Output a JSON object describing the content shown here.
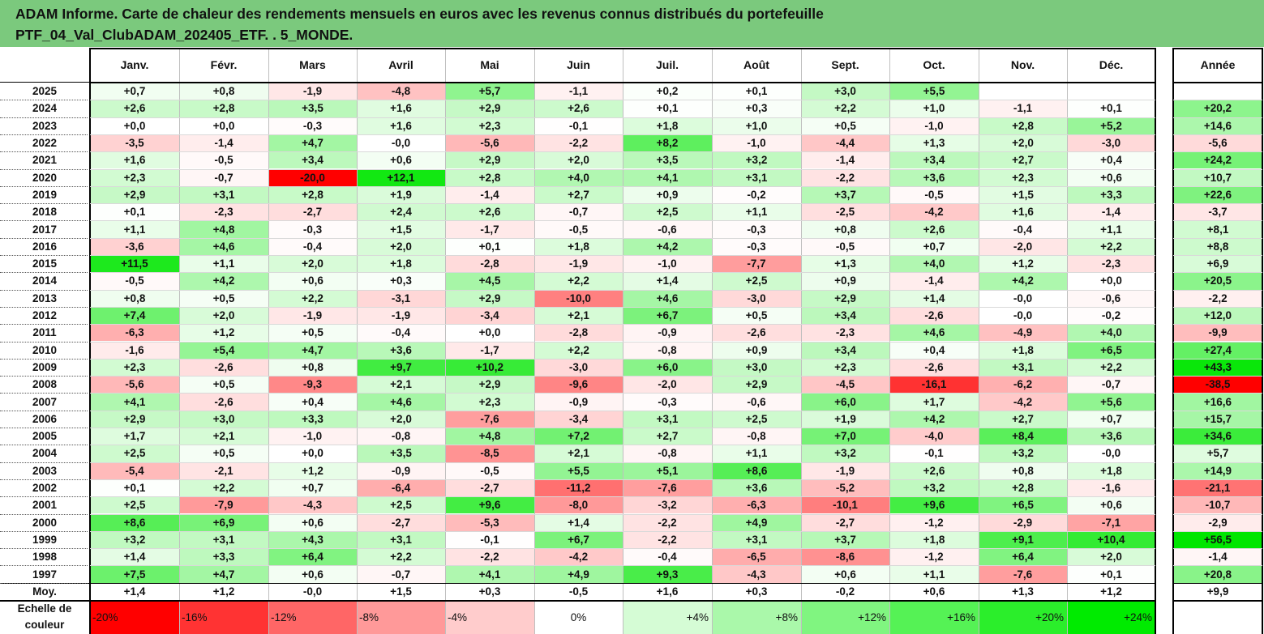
{
  "title": {
    "line1": "ADAM Informe. Carte de chaleur des rendements mensuels en euros avec les revenus connus distribués du portefeuille",
    "line2": "PTF_04_Val_ClubADAM_202405_ETF. . 5_MONDE."
  },
  "colors": {
    "title_band": "#7bc97d",
    "negative_max": "#ff0000",
    "neutral": "#ffffff",
    "positive_max": "#00e600"
  },
  "chart_data": {
    "type": "heatmap",
    "title": "ADAM Informe. Carte de chaleur des rendements mensuels en euros avec les revenus connus distribués du portefeuille PTF_04_Val_ClubADAM_202405_ETF. . 5_MONDE.",
    "columns": [
      "Janv.",
      "Févr.",
      "Mars",
      "Avril",
      "Mai",
      "Juin",
      "Juil.",
      "Août",
      "Sept.",
      "Oct.",
      "Nov.",
      "Déc."
    ],
    "year_column": "Année",
    "rows": [
      {
        "year": "2025",
        "months": [
          "+0,7",
          "+0,8",
          "-1,9",
          "-4,8",
          "+5,7",
          "-1,1",
          "+0,2",
          "+0,1",
          "+3,0",
          "+5,5",
          "",
          ""
        ],
        "annual": ""
      },
      {
        "year": "2024",
        "months": [
          "+2,6",
          "+2,8",
          "+3,5",
          "+1,6",
          "+2,9",
          "+2,6",
          "+0,1",
          "+0,3",
          "+2,2",
          "+1,0",
          "-1,1",
          "+0,1"
        ],
        "annual": "+20,2"
      },
      {
        "year": "2023",
        "months": [
          "+0,0",
          "+0,0",
          "-0,3",
          "+1,6",
          "+2,3",
          "-0,1",
          "+1,8",
          "+1,0",
          "+0,5",
          "-1,0",
          "+2,8",
          "+5,2"
        ],
        "annual": "+14,6"
      },
      {
        "year": "2022",
        "months": [
          "-3,5",
          "-1,4",
          "+4,7",
          "-0,0",
          "-5,6",
          "-2,2",
          "+8,2",
          "-1,0",
          "-4,4",
          "+1,3",
          "+2,0",
          "-3,0"
        ],
        "annual": "-5,6"
      },
      {
        "year": "2021",
        "months": [
          "+1,6",
          "-0,5",
          "+3,4",
          "+0,6",
          "+2,9",
          "+2,0",
          "+3,5",
          "+3,2",
          "-1,4",
          "+3,4",
          "+2,7",
          "+0,4"
        ],
        "annual": "+24,2"
      },
      {
        "year": "2020",
        "months": [
          "+2,3",
          "-0,7",
          "-20,0",
          "+12,1",
          "+2,8",
          "+4,0",
          "+4,1",
          "+3,1",
          "-2,2",
          "+3,6",
          "+2,3",
          "+0,6"
        ],
        "annual": "+10,7"
      },
      {
        "year": "2019",
        "months": [
          "+2,9",
          "+3,1",
          "+2,8",
          "+1,9",
          "-1,4",
          "+2,7",
          "+0,9",
          "-0,2",
          "+3,7",
          "-0,5",
          "+1,5",
          "+3,3"
        ],
        "annual": "+22,6"
      },
      {
        "year": "2018",
        "months": [
          "+0,1",
          "-2,3",
          "-2,7",
          "+2,4",
          "+2,6",
          "-0,7",
          "+2,5",
          "+1,1",
          "-2,5",
          "-4,2",
          "+1,6",
          "-1,4"
        ],
        "annual": "-3,7"
      },
      {
        "year": "2017",
        "months": [
          "+1,1",
          "+4,8",
          "-0,3",
          "+1,5",
          "-1,7",
          "-0,5",
          "-0,6",
          "-0,3",
          "+0,8",
          "+2,6",
          "-0,4",
          "+1,1"
        ],
        "annual": "+8,1"
      },
      {
        "year": "2016",
        "months": [
          "-3,6",
          "+4,6",
          "-0,4",
          "+2,0",
          "+0,1",
          "+1,8",
          "+4,2",
          "-0,3",
          "-0,5",
          "+0,7",
          "-2,0",
          "+2,2"
        ],
        "annual": "+8,8"
      },
      {
        "year": "2015",
        "months": [
          "+11,5",
          "+1,1",
          "+2,0",
          "+1,8",
          "-2,8",
          "-1,9",
          "-1,0",
          "-7,7",
          "+1,3",
          "+4,0",
          "+1,2",
          "-2,3"
        ],
        "annual": "+6,9"
      },
      {
        "year": "2014",
        "months": [
          "-0,5",
          "+4,2",
          "+0,6",
          "+0,3",
          "+4,5",
          "+2,2",
          "+1,4",
          "+2,5",
          "+0,9",
          "-1,4",
          "+4,2",
          "+0,0"
        ],
        "annual": "+20,5"
      },
      {
        "year": "2013",
        "months": [
          "+0,8",
          "+0,5",
          "+2,2",
          "-3,1",
          "+2,9",
          "-10,0",
          "+4,6",
          "-3,0",
          "+2,9",
          "+1,4",
          "-0,0",
          "-0,6"
        ],
        "annual": "-2,2"
      },
      {
        "year": "2012",
        "months": [
          "+7,4",
          "+2,0",
          "-1,9",
          "-1,9",
          "-3,4",
          "+2,1",
          "+6,7",
          "+0,5",
          "+3,4",
          "-2,6",
          "-0,0",
          "-0,2"
        ],
        "annual": "+12,0"
      },
      {
        "year": "2011",
        "months": [
          "-6,3",
          "+1,2",
          "+0,5",
          "-0,4",
          "+0,0",
          "-2,8",
          "-0,9",
          "-2,6",
          "-2,3",
          "+4,6",
          "-4,9",
          "+4,0"
        ],
        "annual": "-9,9"
      },
      {
        "year": "2010",
        "months": [
          "-1,6",
          "+5,4",
          "+4,7",
          "+3,6",
          "-1,7",
          "+2,2",
          "-0,8",
          "+0,9",
          "+3,4",
          "+0,4",
          "+1,8",
          "+6,5"
        ],
        "annual": "+27,4"
      },
      {
        "year": "2009",
        "months": [
          "+2,3",
          "-2,6",
          "+0,8",
          "+9,7",
          "+10,2",
          "-3,0",
          "+6,0",
          "+3,0",
          "+2,3",
          "-2,6",
          "+3,1",
          "+2,2"
        ],
        "annual": "+43,3"
      },
      {
        "year": "2008",
        "months": [
          "-5,6",
          "+0,5",
          "-9,3",
          "+2,1",
          "+2,9",
          "-9,6",
          "-2,0",
          "+2,9",
          "-4,5",
          "-16,1",
          "-6,2",
          "-0,7"
        ],
        "annual": "-38,5"
      },
      {
        "year": "2007",
        "months": [
          "+4,1",
          "-2,6",
          "+0,4",
          "+4,6",
          "+2,3",
          "-0,9",
          "-0,3",
          "-0,6",
          "+6,0",
          "+1,7",
          "-4,2",
          "+5,6"
        ],
        "annual": "+16,6"
      },
      {
        "year": "2006",
        "months": [
          "+2,9",
          "+3,0",
          "+3,3",
          "+2,0",
          "-7,6",
          "-3,4",
          "+3,1",
          "+2,5",
          "+1,9",
          "+4,2",
          "+2,7",
          "+0,7"
        ],
        "annual": "+15,7"
      },
      {
        "year": "2005",
        "months": [
          "+1,7",
          "+2,1",
          "-1,0",
          "-0,8",
          "+4,8",
          "+7,2",
          "+2,7",
          "-0,8",
          "+7,0",
          "-4,0",
          "+8,4",
          "+3,6"
        ],
        "annual": "+34,6"
      },
      {
        "year": "2004",
        "months": [
          "+2,5",
          "+0,5",
          "+0,0",
          "+3,5",
          "-8,5",
          "+2,1",
          "-0,8",
          "+1,1",
          "+3,2",
          "-0,1",
          "+3,2",
          "-0,0"
        ],
        "annual": "+5,7"
      },
      {
        "year": "2003",
        "months": [
          "-5,4",
          "-2,1",
          "+1,2",
          "-0,9",
          "-0,5",
          "+5,5",
          "+5,1",
          "+8,6",
          "-1,9",
          "+2,6",
          "+0,8",
          "+1,8"
        ],
        "annual": "+14,9"
      },
      {
        "year": "2002",
        "months": [
          "+0,1",
          "+2,2",
          "+0,7",
          "-6,4",
          "-2,7",
          "-11,2",
          "-7,6",
          "+3,6",
          "-5,2",
          "+3,2",
          "+2,8",
          "-1,6"
        ],
        "annual": "-21,1"
      },
      {
        "year": "2001",
        "months": [
          "+2,5",
          "-7,9",
          "-4,3",
          "+2,5",
          "+9,6",
          "-8,0",
          "-3,2",
          "-6,3",
          "-10,1",
          "+9,6",
          "+6,5",
          "+0,6"
        ],
        "annual": "-10,7"
      },
      {
        "year": "2000",
        "months": [
          "+8,6",
          "+6,9",
          "+0,6",
          "-2,7",
          "-5,3",
          "+1,4",
          "-2,2",
          "+4,9",
          "-2,7",
          "-1,2",
          "-2,9",
          "-7,1"
        ],
        "annual": "-2,9"
      },
      {
        "year": "1999",
        "months": [
          "+3,2",
          "+3,1",
          "+4,3",
          "+3,1",
          "-0,1",
          "+6,7",
          "-2,2",
          "+3,1",
          "+3,7",
          "+1,8",
          "+9,1",
          "+10,4"
        ],
        "annual": "+56,5"
      },
      {
        "year": "1998",
        "months": [
          "+1,4",
          "+3,3",
          "+6,4",
          "+2,2",
          "-2,2",
          "-4,2",
          "-0,4",
          "-6,5",
          "-8,6",
          "-1,2",
          "+6,4",
          "+2,0"
        ],
        "annual": "-1,4"
      },
      {
        "year": "1997",
        "months": [
          "+7,5",
          "+4,7",
          "+0,6",
          "-0,7",
          "+4,1",
          "+4,9",
          "+9,3",
          "-4,3",
          "+0,6",
          "+1,1",
          "-7,6",
          "+0,1"
        ],
        "annual": "+20,8"
      }
    ],
    "average": {
      "label": "Moy.",
      "months": [
        "+1,4",
        "+1,2",
        "-0,0",
        "+1,5",
        "+0,3",
        "-0,5",
        "+1,6",
        "+0,3",
        "-0,2",
        "+0,6",
        "+1,3",
        "+1,2"
      ],
      "annual": "+9,9"
    },
    "color_scale": {
      "label_line1": "Echelle de",
      "label_line2": "couleur",
      "stops": [
        "-20%",
        "-16%",
        "-12%",
        "-8%",
        "-4%",
        "0%",
        "+4%",
        "+8%",
        "+12%",
        "+16%",
        "+20%",
        "+24%"
      ],
      "values": [
        -20,
        -16,
        -12,
        -8,
        -4,
        0,
        4,
        8,
        12,
        16,
        20,
        24
      ]
    },
    "legend": "bottom"
  }
}
